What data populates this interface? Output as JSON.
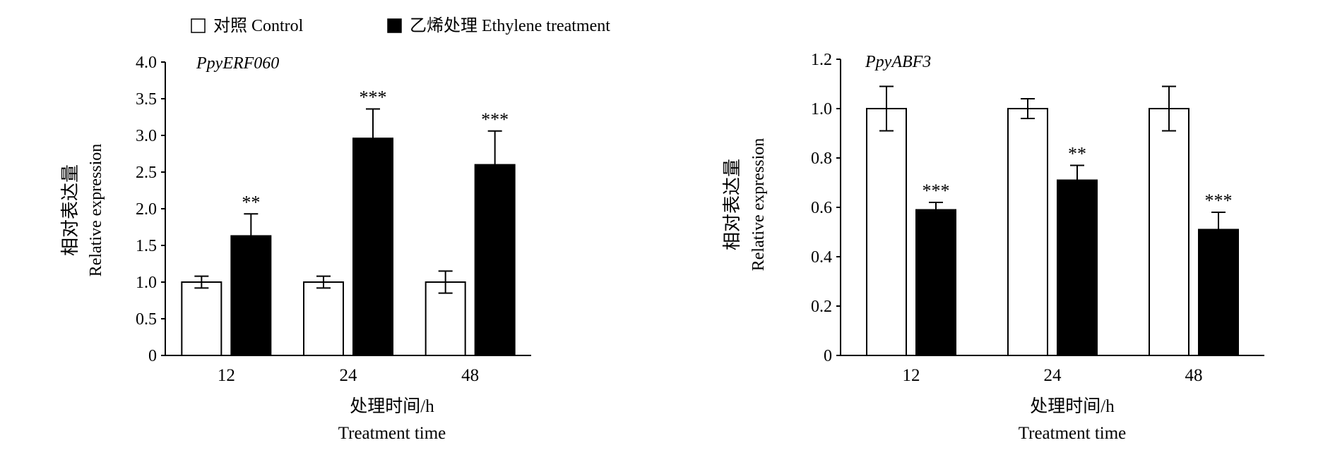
{
  "legend": {
    "items": [
      {
        "label": "对照 Control",
        "fill": "#ffffff"
      },
      {
        "label": "乙烯处理 Ethylene treatment",
        "fill": "#000000"
      }
    ],
    "placement": "top"
  },
  "chart_data": [
    {
      "type": "bar",
      "title": "PpyERF060",
      "categories": [
        "12",
        "24",
        "48"
      ],
      "series": [
        {
          "name": "对照 Control",
          "values": [
            1.0,
            1.0,
            1.0
          ],
          "errors": [
            0.08,
            0.08,
            0.15
          ],
          "color": "#ffffff"
        },
        {
          "name": "乙烯处理 Ethylene treatment",
          "values": [
            1.63,
            2.96,
            2.6
          ],
          "errors": [
            0.3,
            0.4,
            0.46
          ],
          "color": "#000000"
        }
      ],
      "significance": [
        "**",
        "***",
        "***"
      ],
      "ylabel_cn": "相对表达量",
      "ylabel": "Relative expression",
      "xlabel_cn": "处理时间/h",
      "xlabel": "Treatment time",
      "ylim": [
        0,
        4.0
      ],
      "yticks": [
        "0",
        "0.5",
        "1.0",
        "1.5",
        "2.0",
        "2.5",
        "3.0",
        "3.5",
        "4.0"
      ],
      "grid": false
    },
    {
      "type": "bar",
      "title": "PpyABF3",
      "categories": [
        "12",
        "24",
        "48"
      ],
      "series": [
        {
          "name": "对照 Control",
          "values": [
            1.0,
            1.0,
            1.0
          ],
          "errors": [
            0.09,
            0.04,
            0.09
          ],
          "color": "#ffffff"
        },
        {
          "name": "乙烯处理 Ethylene treatment",
          "values": [
            0.59,
            0.71,
            0.51
          ],
          "errors": [
            0.03,
            0.06,
            0.07
          ],
          "color": "#000000"
        }
      ],
      "significance": [
        "***",
        "**",
        "***"
      ],
      "ylabel_cn": "相对表达量",
      "ylabel": "Relative expression",
      "xlabel_cn": "处理时间/h",
      "xlabel": "Treatment time",
      "ylim": [
        0,
        1.2
      ],
      "yticks": [
        "0",
        "0.2",
        "0.4",
        "0.6",
        "0.8",
        "1.0",
        "1.2"
      ],
      "grid": false
    }
  ]
}
